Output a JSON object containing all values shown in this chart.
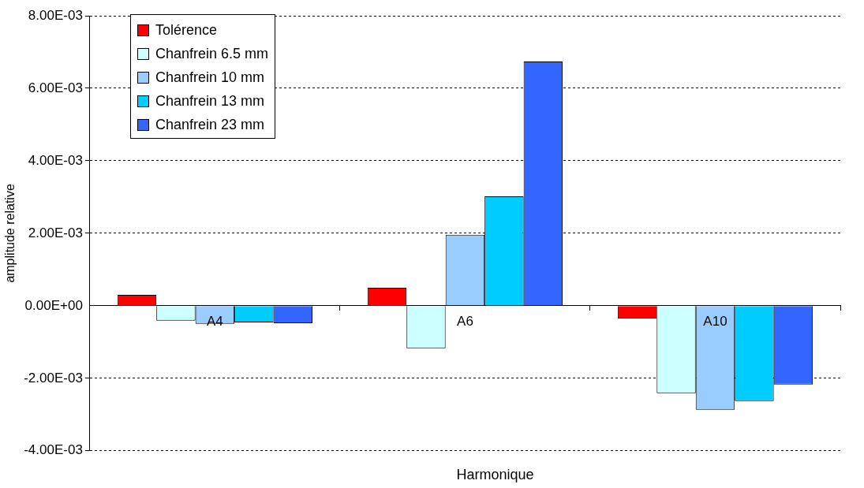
{
  "chart_data": {
    "type": "bar",
    "xlabel": "Harmonique",
    "ylabel": "amplitude relative",
    "categories": [
      "A4",
      "A6",
      "A10"
    ],
    "series": [
      {
        "name": "Tolérence",
        "color": "#ff0000",
        "values": [
          0.0003,
          0.0005,
          -0.00035
        ]
      },
      {
        "name": "Chanfrein 6.5 mm",
        "color": "#ccffff",
        "values": [
          -0.00041,
          -0.00117,
          -0.00241
        ]
      },
      {
        "name": "Chanfrein 10 mm",
        "color": "#99ccff",
        "values": [
          -0.0005,
          0.00196,
          -0.00287
        ]
      },
      {
        "name": "Chanfrein 13 mm",
        "color": "#00ccff",
        "values": [
          -0.00046,
          0.00302,
          -0.00263
        ]
      },
      {
        "name": "Chanfrein 23 mm",
        "color": "#3366ff",
        "values": [
          -0.00048,
          0.00674,
          -0.00217
        ]
      }
    ],
    "ylim": [
      -0.004,
      0.008
    ],
    "yticks": [
      {
        "value": -0.004,
        "label": "-4.00E-03"
      },
      {
        "value": -0.002,
        "label": "-2.00E-03"
      },
      {
        "value": 0,
        "label": "0.00E+00"
      },
      {
        "value": 0.002,
        "label": "2.00E-03"
      },
      {
        "value": 0.004,
        "label": "4.00E-03"
      },
      {
        "value": 0.006,
        "label": "6.00E-03"
      },
      {
        "value": 0.008,
        "label": "8.00E-03"
      }
    ],
    "grid": "y",
    "legend": "top left"
  }
}
